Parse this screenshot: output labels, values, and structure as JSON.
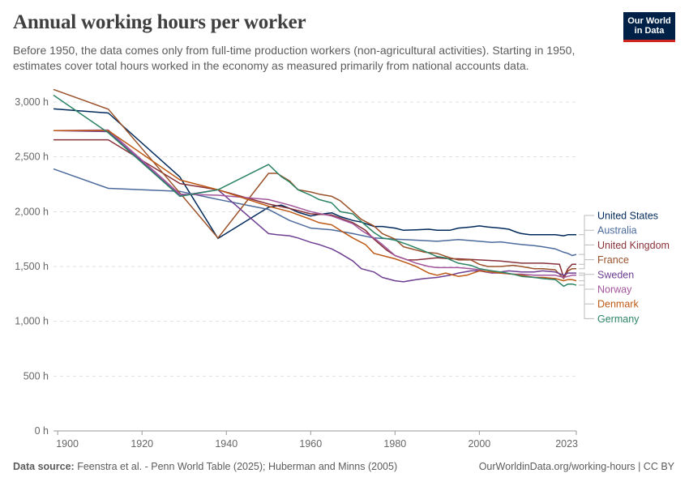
{
  "header": {
    "title": "Annual working hours per worker",
    "subtitle": "Before 1950, the data comes only from full-time production workers (non-agricultural activities). Starting in 1950, estimates cover total hours worked in the economy as measured primarily from national accounts data."
  },
  "logo": {
    "line1": "Our World",
    "line2": "in Data",
    "bg_color": "#002147",
    "accent_color": "#ce261e"
  },
  "footer": {
    "source_label": "Data source:",
    "source_text": "Feenstra et al. - Penn World Table (2025); Huberman and Minns (2005)",
    "link_text": "OurWorldinData.org/working-hours | CC BY"
  },
  "chart_data": {
    "type": "line",
    "title": "Annual working hours per worker",
    "xlabel": "",
    "ylabel": "",
    "xlim": [
      1899,
      2023
    ],
    "ylim": [
      0,
      3000
    ],
    "x_ticks": [
      1900,
      1920,
      1940,
      1960,
      1980,
      2000,
      2023
    ],
    "x_tick_labels": [
      "1900",
      "1920",
      "1940",
      "1960",
      "1980",
      "2000",
      "2023"
    ],
    "y_ticks": [
      0,
      500,
      1000,
      1500,
      2000,
      2500,
      3000
    ],
    "y_tick_labels": [
      "0 h",
      "500 h",
      "1,000 h",
      "1,500 h",
      "2,000 h",
      "2,500 h",
      "3,000 h"
    ],
    "grid": "horizontal-dashed",
    "legend_position": "right",
    "series": [
      {
        "name": "United States",
        "color": "#00295b",
        "points": [
          [
            1899,
            2938
          ],
          [
            1912,
            2900
          ],
          [
            1929,
            2316
          ],
          [
            1938,
            1756
          ],
          [
            1950,
            2040
          ],
          [
            1953,
            2060
          ],
          [
            1955,
            2030
          ],
          [
            1957,
            1995
          ],
          [
            1960,
            1960
          ],
          [
            1962,
            1975
          ],
          [
            1965,
            1990
          ],
          [
            1967,
            1955
          ],
          [
            1970,
            1920
          ],
          [
            1972,
            1905
          ],
          [
            1975,
            1865
          ],
          [
            1977,
            1865
          ],
          [
            1980,
            1850
          ],
          [
            1982,
            1830
          ],
          [
            1985,
            1835
          ],
          [
            1988,
            1840
          ],
          [
            1990,
            1830
          ],
          [
            1993,
            1830
          ],
          [
            1995,
            1850
          ],
          [
            1998,
            1860
          ],
          [
            2000,
            1870
          ],
          [
            2002,
            1860
          ],
          [
            2005,
            1850
          ],
          [
            2007,
            1840
          ],
          [
            2009,
            1810
          ],
          [
            2010,
            1800
          ],
          [
            2012,
            1790
          ],
          [
            2015,
            1790
          ],
          [
            2018,
            1790
          ],
          [
            2020,
            1780
          ],
          [
            2021,
            1790
          ],
          [
            2023,
            1790
          ]
        ]
      },
      {
        "name": "Australia",
        "color": "#4c6a9c",
        "points": [
          [
            1899,
            2390
          ],
          [
            1912,
            2213
          ],
          [
            1929,
            2185
          ],
          [
            1938,
            2112
          ],
          [
            1950,
            2020
          ],
          [
            1955,
            1920
          ],
          [
            1960,
            1850
          ],
          [
            1965,
            1835
          ],
          [
            1970,
            1800
          ],
          [
            1975,
            1760
          ],
          [
            1980,
            1750
          ],
          [
            1985,
            1740
          ],
          [
            1990,
            1730
          ],
          [
            1995,
            1745
          ],
          [
            2000,
            1730
          ],
          [
            2003,
            1720
          ],
          [
            2005,
            1725
          ],
          [
            2008,
            1710
          ],
          [
            2010,
            1700
          ],
          [
            2013,
            1690
          ],
          [
            2015,
            1680
          ],
          [
            2018,
            1660
          ],
          [
            2020,
            1630
          ],
          [
            2021,
            1620
          ],
          [
            2022,
            1600
          ],
          [
            2023,
            1610
          ]
        ]
      },
      {
        "name": "United Kingdom",
        "color": "#883039",
        "points": [
          [
            1899,
            2656
          ],
          [
            1912,
            2656
          ],
          [
            1929,
            2257
          ],
          [
            1938,
            2200
          ],
          [
            1950,
            2070
          ],
          [
            1955,
            2030
          ],
          [
            1960,
            1980
          ],
          [
            1965,
            1970
          ],
          [
            1970,
            1900
          ],
          [
            1973,
            1830
          ],
          [
            1975,
            1750
          ],
          [
            1978,
            1650
          ],
          [
            1980,
            1600
          ],
          [
            1983,
            1560
          ],
          [
            1985,
            1560
          ],
          [
            1990,
            1580
          ],
          [
            1993,
            1570
          ],
          [
            1995,
            1570
          ],
          [
            2000,
            1560
          ],
          [
            2005,
            1550
          ],
          [
            2010,
            1530
          ],
          [
            2015,
            1530
          ],
          [
            2019,
            1520
          ],
          [
            2020,
            1400
          ],
          [
            2021,
            1480
          ],
          [
            2022,
            1520
          ],
          [
            2023,
            1520
          ]
        ]
      },
      {
        "name": "France",
        "color": "#9a5129",
        "points": [
          [
            1899,
            3115
          ],
          [
            1912,
            2935
          ],
          [
            1929,
            2170
          ],
          [
            1938,
            1760
          ],
          [
            1950,
            2350
          ],
          [
            1952,
            2350
          ],
          [
            1955,
            2280
          ],
          [
            1957,
            2200
          ],
          [
            1960,
            2180
          ],
          [
            1962,
            2160
          ],
          [
            1965,
            2140
          ],
          [
            1967,
            2100
          ],
          [
            1970,
            2000
          ],
          [
            1972,
            1930
          ],
          [
            1975,
            1870
          ],
          [
            1977,
            1800
          ],
          [
            1980,
            1750
          ],
          [
            1982,
            1680
          ],
          [
            1985,
            1650
          ],
          [
            1987,
            1630
          ],
          [
            1990,
            1620
          ],
          [
            1993,
            1580
          ],
          [
            1995,
            1560
          ],
          [
            1998,
            1560
          ],
          [
            2000,
            1520
          ],
          [
            2002,
            1500
          ],
          [
            2005,
            1500
          ],
          [
            2008,
            1510
          ],
          [
            2010,
            1500
          ],
          [
            2013,
            1480
          ],
          [
            2015,
            1480
          ],
          [
            2018,
            1470
          ],
          [
            2020,
            1390
          ],
          [
            2021,
            1460
          ],
          [
            2022,
            1480
          ],
          [
            2023,
            1480
          ]
        ]
      },
      {
        "name": "Sweden",
        "color": "#6d3e91",
        "points": [
          [
            1899,
            2740
          ],
          [
            1912,
            2730
          ],
          [
            1929,
            2145
          ],
          [
            1938,
            2200
          ],
          [
            1950,
            1800
          ],
          [
            1952,
            1790
          ],
          [
            1955,
            1780
          ],
          [
            1957,
            1760
          ],
          [
            1960,
            1720
          ],
          [
            1962,
            1700
          ],
          [
            1965,
            1660
          ],
          [
            1967,
            1620
          ],
          [
            1970,
            1550
          ],
          [
            1972,
            1480
          ],
          [
            1975,
            1450
          ],
          [
            1977,
            1400
          ],
          [
            1980,
            1370
          ],
          [
            1982,
            1360
          ],
          [
            1985,
            1380
          ],
          [
            1987,
            1390
          ],
          [
            1990,
            1400
          ],
          [
            1993,
            1420
          ],
          [
            1995,
            1440
          ],
          [
            1998,
            1460
          ],
          [
            2000,
            1460
          ],
          [
            2003,
            1440
          ],
          [
            2005,
            1450
          ],
          [
            2007,
            1460
          ],
          [
            2010,
            1450
          ],
          [
            2013,
            1450
          ],
          [
            2015,
            1460
          ],
          [
            2018,
            1450
          ],
          [
            2020,
            1420
          ],
          [
            2021,
            1440
          ],
          [
            2023,
            1440
          ]
        ]
      },
      {
        "name": "Norway",
        "color": "#a2559c",
        "points": [
          [
            1899,
            2740
          ],
          [
            1912,
            2745
          ],
          [
            1929,
            2160
          ],
          [
            1938,
            2150
          ],
          [
            1950,
            2110
          ],
          [
            1955,
            2060
          ],
          [
            1960,
            2000
          ],
          [
            1965,
            1960
          ],
          [
            1970,
            1890
          ],
          [
            1972,
            1830
          ],
          [
            1975,
            1760
          ],
          [
            1977,
            1700
          ],
          [
            1980,
            1600
          ],
          [
            1983,
            1560
          ],
          [
            1985,
            1530
          ],
          [
            1988,
            1500
          ],
          [
            1990,
            1490
          ],
          [
            1993,
            1490
          ],
          [
            1995,
            1490
          ],
          [
            1998,
            1480
          ],
          [
            2000,
            1470
          ],
          [
            2003,
            1440
          ],
          [
            2005,
            1440
          ],
          [
            2008,
            1430
          ],
          [
            2010,
            1430
          ],
          [
            2013,
            1420
          ],
          [
            2015,
            1420
          ],
          [
            2018,
            1420
          ],
          [
            2020,
            1400
          ],
          [
            2021,
            1410
          ],
          [
            2022,
            1420
          ],
          [
            2023,
            1420
          ]
        ]
      },
      {
        "name": "Denmark",
        "color": "#be5915",
        "points": [
          [
            1899,
            2740
          ],
          [
            1912,
            2740
          ],
          [
            1929,
            2290
          ],
          [
            1938,
            2200
          ],
          [
            1950,
            2050
          ],
          [
            1955,
            2000
          ],
          [
            1960,
            1930
          ],
          [
            1962,
            1900
          ],
          [
            1965,
            1880
          ],
          [
            1967,
            1830
          ],
          [
            1970,
            1760
          ],
          [
            1973,
            1700
          ],
          [
            1975,
            1620
          ],
          [
            1977,
            1600
          ],
          [
            1980,
            1570
          ],
          [
            1983,
            1530
          ],
          [
            1985,
            1500
          ],
          [
            1988,
            1440
          ],
          [
            1990,
            1420
          ],
          [
            1992,
            1440
          ],
          [
            1995,
            1410
          ],
          [
            1997,
            1420
          ],
          [
            2000,
            1460
          ],
          [
            2003,
            1450
          ],
          [
            2005,
            1440
          ],
          [
            2008,
            1430
          ],
          [
            2010,
            1420
          ],
          [
            2013,
            1400
          ],
          [
            2015,
            1400
          ],
          [
            2018,
            1390
          ],
          [
            2020,
            1370
          ],
          [
            2021,
            1380
          ],
          [
            2022,
            1380
          ],
          [
            2023,
            1370
          ]
        ]
      },
      {
        "name": "Germany",
        "color": "#2c8465",
        "points": [
          [
            1899,
            3063
          ],
          [
            1912,
            2720
          ],
          [
            1929,
            2140
          ],
          [
            1938,
            2200
          ],
          [
            1950,
            2430
          ],
          [
            1953,
            2320
          ],
          [
            1955,
            2270
          ],
          [
            1957,
            2200
          ],
          [
            1960,
            2150
          ],
          [
            1962,
            2110
          ],
          [
            1965,
            2080
          ],
          [
            1967,
            2000
          ],
          [
            1970,
            1980
          ],
          [
            1972,
            1910
          ],
          [
            1975,
            1810
          ],
          [
            1977,
            1760
          ],
          [
            1980,
            1740
          ],
          [
            1983,
            1700
          ],
          [
            1985,
            1670
          ],
          [
            1987,
            1640
          ],
          [
            1990,
            1590
          ],
          [
            1992,
            1580
          ],
          [
            1995,
            1530
          ],
          [
            1998,
            1510
          ],
          [
            2000,
            1480
          ],
          [
            2003,
            1460
          ],
          [
            2005,
            1450
          ],
          [
            2008,
            1430
          ],
          [
            2010,
            1410
          ],
          [
            2013,
            1400
          ],
          [
            2015,
            1390
          ],
          [
            2018,
            1380
          ],
          [
            2020,
            1320
          ],
          [
            2021,
            1340
          ],
          [
            2022,
            1340
          ],
          [
            2023,
            1330
          ]
        ]
      }
    ]
  }
}
